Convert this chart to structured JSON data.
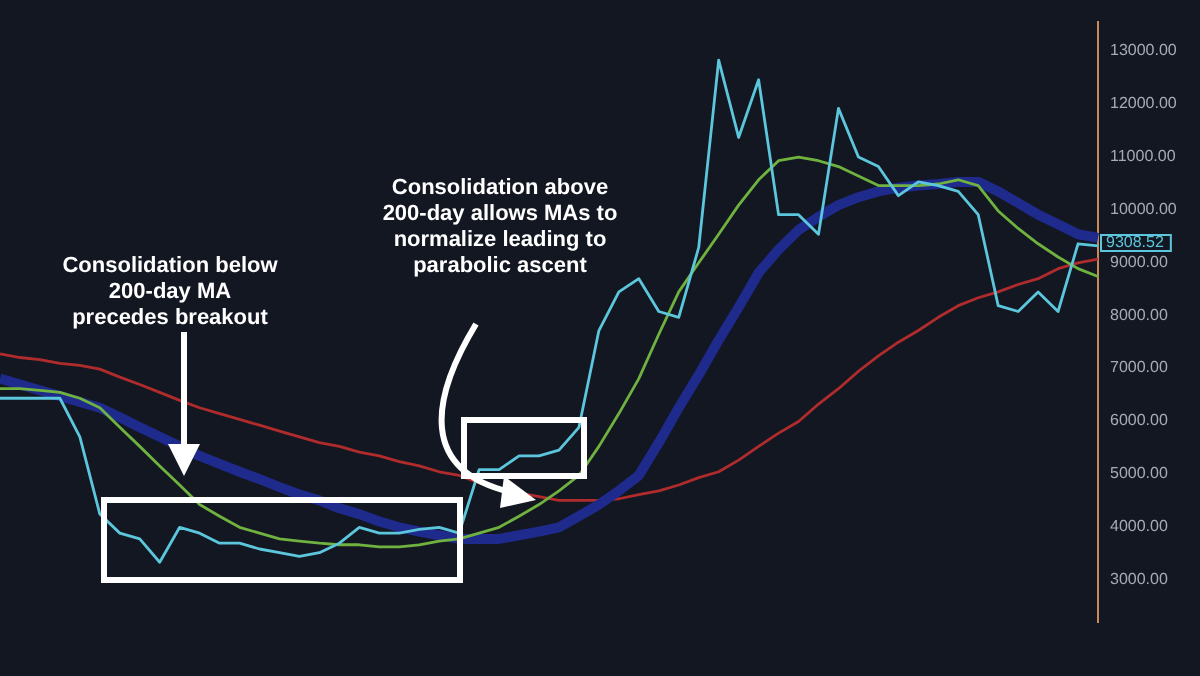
{
  "chart_data": {
    "type": "line",
    "categories": [
      null,
      null,
      null,
      null,
      null,
      null,
      null,
      null,
      null,
      null,
      null,
      null,
      null,
      null,
      null,
      null,
      null,
      null,
      null,
      null,
      null,
      null,
      null,
      null,
      null,
      null,
      null,
      null,
      null,
      null,
      null,
      null,
      null,
      null,
      null,
      null,
      null,
      null,
      null,
      null,
      null,
      null,
      null,
      null,
      null,
      null,
      null,
      null,
      null,
      null,
      null,
      null,
      null,
      null,
      null,
      null
    ],
    "series": [
      {
        "color": "#5cc6dc",
        "values": [
          6430,
          6430,
          6430,
          6430,
          5700,
          4240,
          3880,
          3770,
          3330,
          3990,
          3880,
          3690,
          3690,
          3580,
          3510,
          3440,
          3510,
          3690,
          3990,
          3880,
          3880,
          3950,
          3990,
          3880,
          5080,
          5080,
          5340,
          5340,
          5450,
          5880,
          7710,
          8440,
          8690,
          8070,
          7960,
          9280,
          12820,
          11360,
          12450,
          9900,
          9900,
          9530,
          11910,
          10990,
          10810,
          10260,
          10520,
          10450,
          10340,
          9900,
          8180,
          8070,
          8440,
          8070,
          9350,
          9310
        ]
      },
      {
        "color": "#6fb23f",
        "values": [
          6610,
          6610,
          6580,
          6540,
          6430,
          6250,
          5880,
          5520,
          5150,
          4790,
          4420,
          4200,
          3990,
          3880,
          3770,
          3730,
          3690,
          3660,
          3660,
          3620,
          3620,
          3660,
          3730,
          3770,
          3880,
          3990,
          4200,
          4420,
          4680,
          4970,
          5520,
          6140,
          6800,
          7640,
          8440,
          8990,
          9530,
          10080,
          10560,
          10920,
          10990,
          10920,
          10810,
          10630,
          10450,
          10450,
          10450,
          10480,
          10560,
          10450,
          9970,
          9640,
          9350,
          9100,
          8880,
          8730
        ]
      },
      {
        "color": "#1e2a8c",
        "values": [
          6800,
          6690,
          6580,
          6470,
          6360,
          6250,
          6070,
          5880,
          5700,
          5520,
          5340,
          5190,
          5040,
          4900,
          4750,
          4610,
          4500,
          4350,
          4240,
          4100,
          3990,
          3910,
          3840,
          3770,
          3770,
          3770,
          3840,
          3910,
          3990,
          4200,
          4420,
          4680,
          4970,
          5590,
          6250,
          6870,
          7530,
          8150,
          8800,
          9240,
          9610,
          9860,
          10080,
          10230,
          10340,
          10410,
          10450,
          10480,
          10520,
          10520,
          10340,
          10120,
          9900,
          9720,
          9530,
          9460
        ]
      },
      {
        "color": "#b02c2c",
        "values": [
          7270,
          7200,
          7160,
          7090,
          7050,
          6980,
          6830,
          6690,
          6540,
          6390,
          6250,
          6140,
          6030,
          5920,
          5810,
          5700,
          5590,
          5520,
          5410,
          5340,
          5230,
          5150,
          5040,
          4970,
          4830,
          4720,
          4640,
          4570,
          4500,
          4500,
          4500,
          4530,
          4610,
          4680,
          4790,
          4930,
          5040,
          5260,
          5520,
          5770,
          5990,
          6320,
          6610,
          6940,
          7230,
          7490,
          7710,
          7960,
          8180,
          8330,
          8440,
          8580,
          8690,
          8880,
          8990,
          9060
        ]
      }
    ],
    "ylim": [
      2200,
      13550
    ],
    "yticks": [
      {
        "value": 3000,
        "label": "3000.00"
      },
      {
        "value": 4000,
        "label": "4000.00"
      },
      {
        "value": 5000,
        "label": "5000.00"
      },
      {
        "value": 6000,
        "label": "6000.00"
      },
      {
        "value": 7000,
        "label": "7000.00"
      },
      {
        "value": 8000,
        "label": "8000.00"
      },
      {
        "value": 9000,
        "label": "9000.00"
      },
      {
        "value": 10000,
        "label": "10000.00"
      },
      {
        "value": 11000,
        "label": "11000.00"
      },
      {
        "value": 12000,
        "label": "12000.00"
      },
      {
        "value": 13000,
        "label": "13000.00"
      }
    ],
    "tick_labels": "y",
    "legend": false,
    "grid": false,
    "marker": "none",
    "line_style": "solid",
    "annotations": [
      "Consolidation below 200-day MA precedes breakout",
      "Consolidation above 200-day allows MAs to normalize leading to parabolic ascent",
      "9308.52"
    ]
  }
}
